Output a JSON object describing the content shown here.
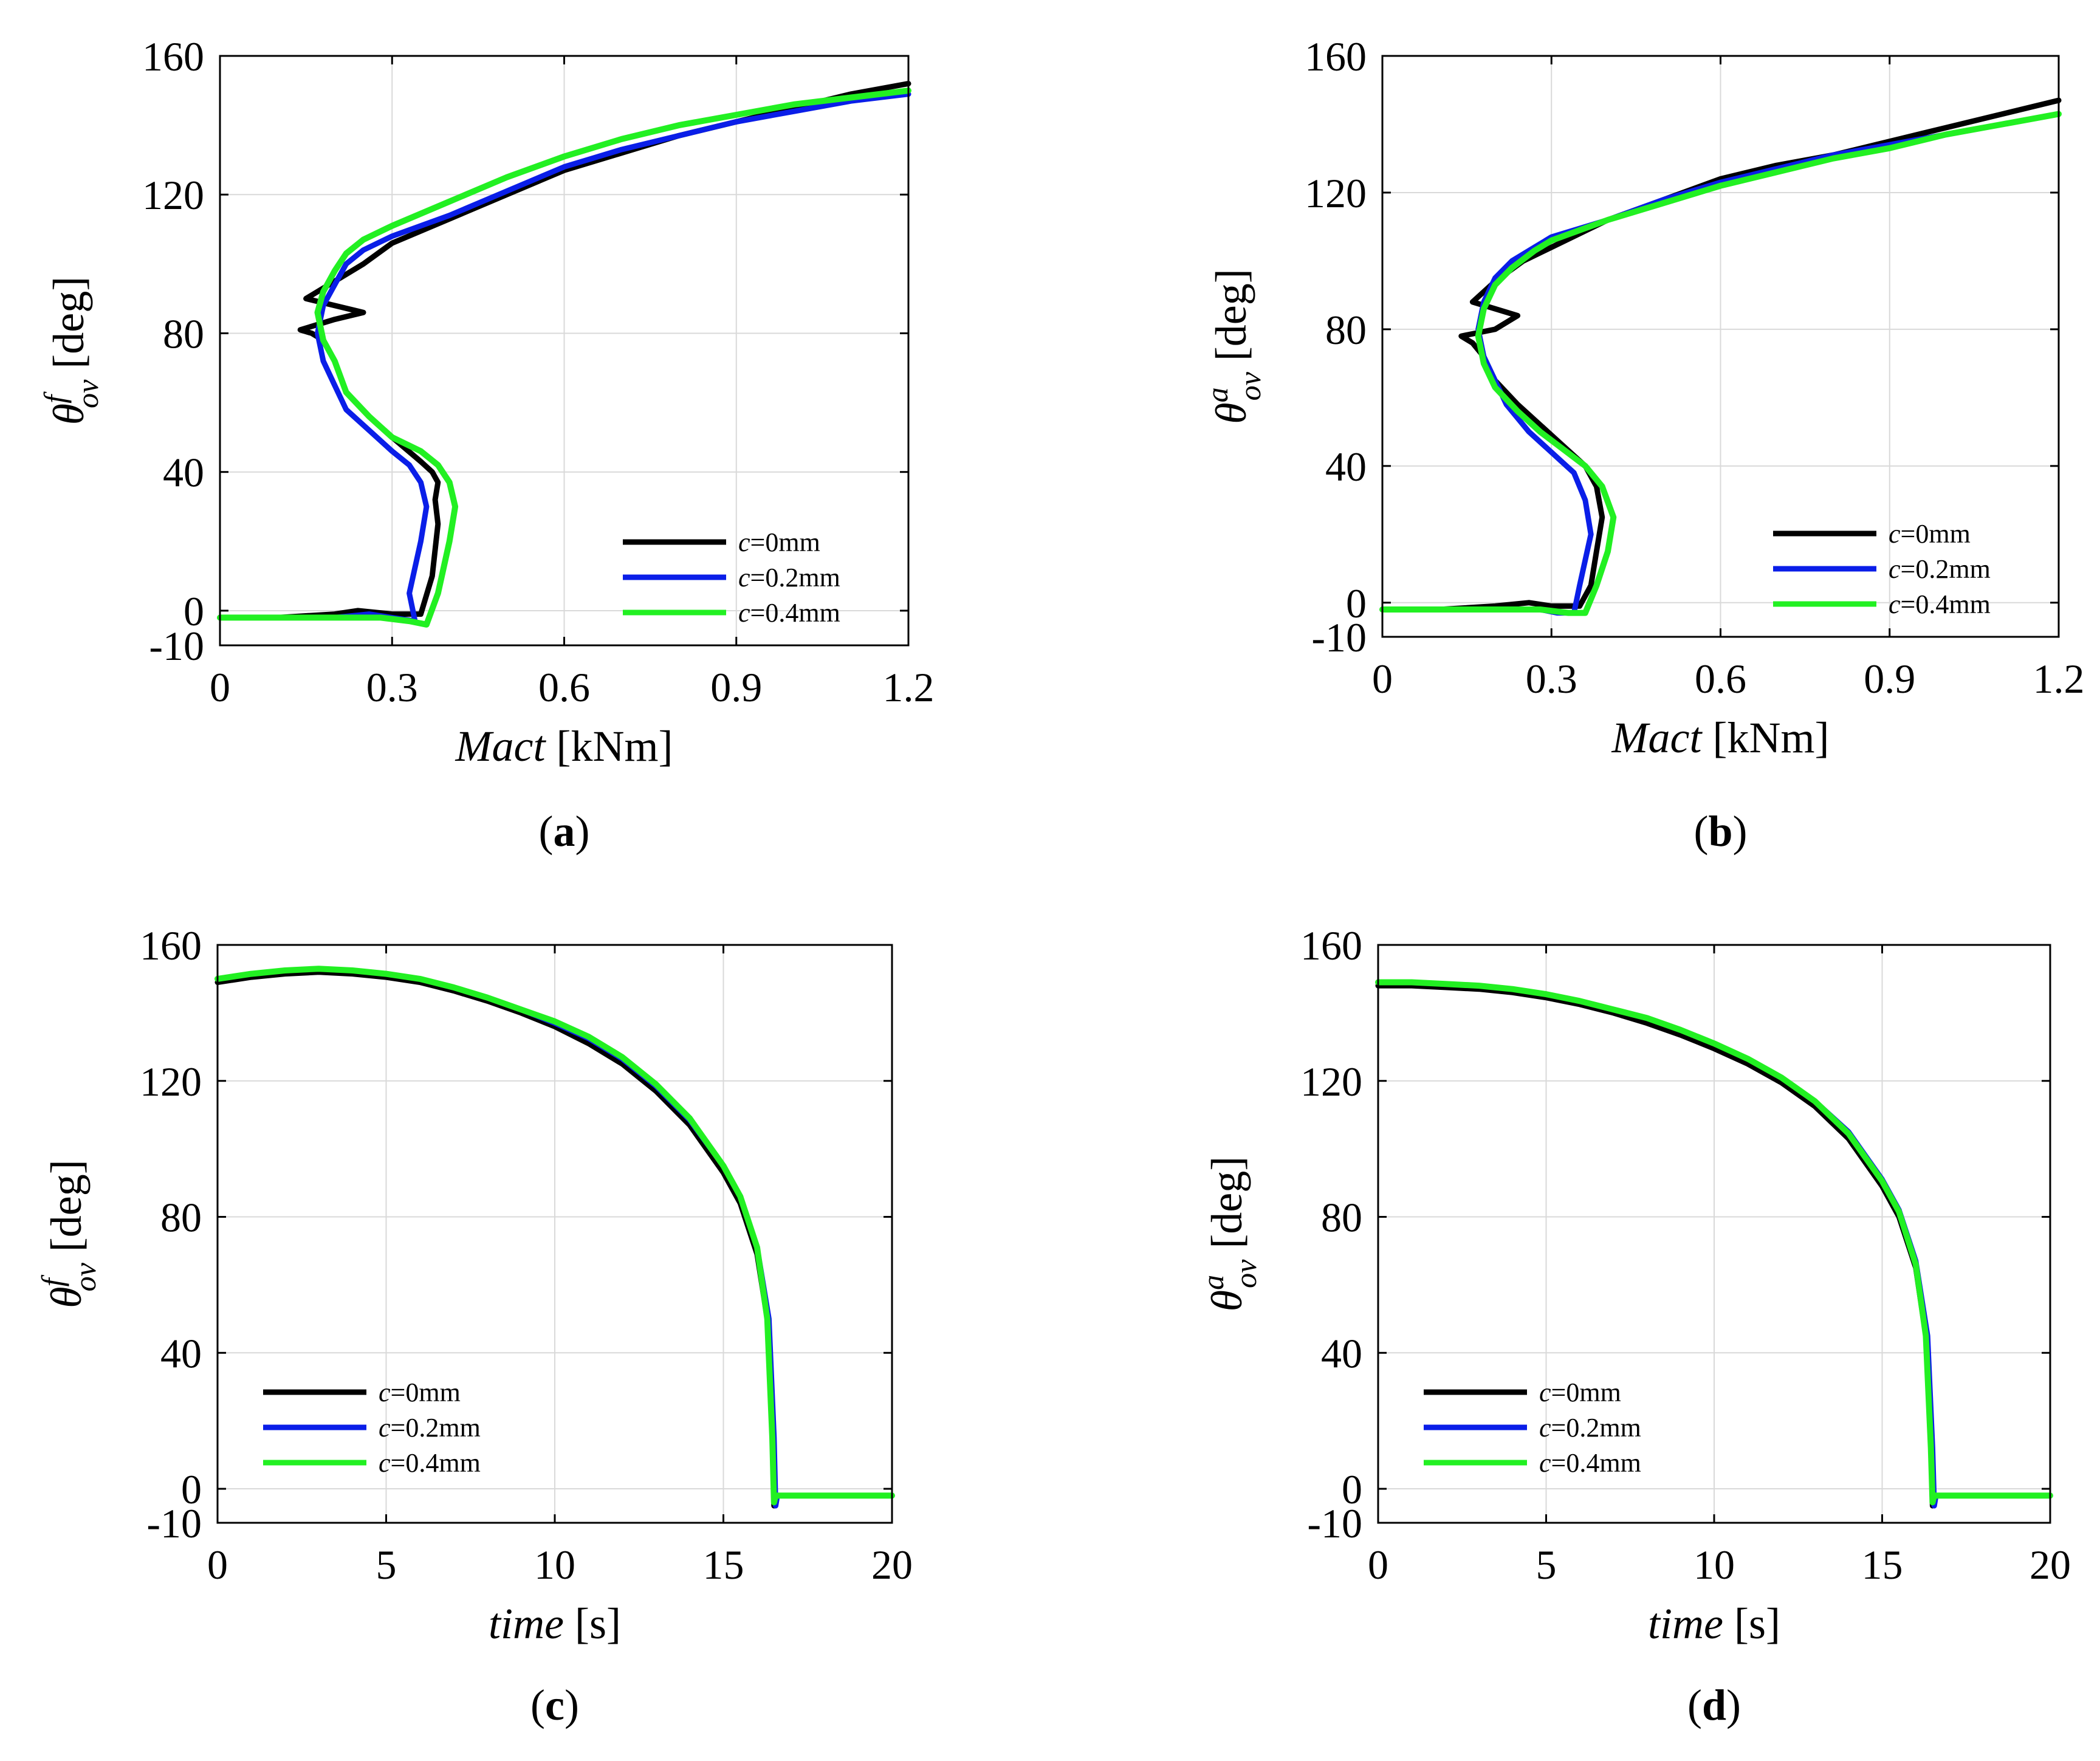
{
  "figure": {
    "series_colors": {
      "c0": "#000000",
      "c02": "#0a1ee8",
      "c04": "#22f022"
    }
  },
  "chart_data": [
    {
      "id": "a",
      "type": "line",
      "caption": "a",
      "xlabel": "Mact",
      "xlabel_unit": "[kNm]",
      "ylabel_base": "θ",
      "ylabel_sup": "f",
      "ylabel_sub": "ov",
      "ylabel_unit": "[deg]",
      "xlim": [
        0,
        1.2
      ],
      "ylim": [
        -10,
        160
      ],
      "xticks": [
        0,
        0.3,
        0.6,
        0.9,
        1.2
      ],
      "xtick_labels": [
        "0",
        "0.3",
        "0.6",
        "0.9",
        "1.2"
      ],
      "yticks": [
        -10,
        0,
        40,
        80,
        120,
        160
      ],
      "ytick_labels": [
        "-10",
        "0",
        "40",
        "80",
        "120",
        "160"
      ],
      "grid": true,
      "legend_position": "bottom-right",
      "series": [
        {
          "name": "c=0mm",
          "c": "c",
          "val": "=0mm",
          "color": "#000000",
          "x": [
            0,
            0.1,
            0.2,
            0.24,
            0.3,
            0.35,
            0.37,
            0.38,
            0.375,
            0.38,
            0.37,
            0.35,
            0.3,
            0.26,
            0.22,
            0.2,
            0.18,
            0.16,
            0.14,
            0.2,
            0.25,
            0.15,
            0.2,
            0.25,
            0.3,
            0.4,
            0.5,
            0.6,
            0.7,
            0.8,
            0.9,
            1.0,
            1.1,
            1.2
          ],
          "y": [
            -2,
            -2,
            -1,
            0,
            -1,
            -1,
            10,
            25,
            32,
            37,
            40,
            43,
            50,
            56,
            63,
            72,
            78,
            80,
            81,
            84,
            86,
            90,
            95,
            100,
            106,
            113,
            120,
            127,
            132,
            137,
            141,
            145,
            149,
            152
          ]
        },
        {
          "name": "c=0.2mm",
          "c": "c",
          "val": "=0.2mm",
          "color": "#0a1ee8",
          "x": [
            0,
            0.1,
            0.2,
            0.26,
            0.3,
            0.34,
            0.33,
            0.35,
            0.36,
            0.35,
            0.33,
            0.3,
            0.26,
            0.22,
            0.2,
            0.18,
            0.17,
            0.18,
            0.2,
            0.22,
            0.25,
            0.3,
            0.4,
            0.5,
            0.6,
            0.7,
            0.8,
            0.9,
            1.0,
            1.1,
            1.2
          ],
          "y": [
            -2,
            -2,
            -2,
            -1,
            -2,
            -3,
            5,
            20,
            30,
            37,
            42,
            46,
            52,
            58,
            65,
            72,
            80,
            88,
            94,
            100,
            104,
            108,
            114,
            121,
            128,
            133,
            137,
            141,
            144,
            147,
            149
          ]
        },
        {
          "name": "c=0.4mm",
          "c": "c",
          "val": "=0.4mm",
          "color": "#22f022",
          "x": [
            0,
            0.1,
            0.2,
            0.28,
            0.33,
            0.36,
            0.38,
            0.4,
            0.41,
            0.4,
            0.38,
            0.35,
            0.3,
            0.26,
            0.22,
            0.2,
            0.18,
            0.17,
            0.18,
            0.2,
            0.22,
            0.25,
            0.3,
            0.4,
            0.5,
            0.6,
            0.7,
            0.8,
            0.9,
            1.0,
            1.1,
            1.2
          ],
          "y": [
            -2,
            -2,
            -2,
            -2,
            -3,
            -4,
            5,
            20,
            30,
            37,
            42,
            46,
            50,
            56,
            63,
            72,
            78,
            86,
            92,
            98,
            103,
            107,
            111,
            118,
            125,
            131,
            136,
            140,
            143,
            146,
            148,
            150
          ]
        }
      ]
    },
    {
      "id": "b",
      "type": "line",
      "caption": "b",
      "xlabel": "Mact",
      "xlabel_unit": "[kNm]",
      "ylabel_base": "θ",
      "ylabel_sup": "a",
      "ylabel_sub": "ov",
      "ylabel_unit": "[deg]",
      "xlim": [
        0,
        1.2
      ],
      "ylim": [
        -10,
        160
      ],
      "xticks": [
        0,
        0.3,
        0.6,
        0.9,
        1.2
      ],
      "xtick_labels": [
        "0",
        "0.3",
        "0.6",
        "0.9",
        "1.2"
      ],
      "yticks": [
        -10,
        0,
        40,
        80,
        120,
        160
      ],
      "ytick_labels": [
        "-10",
        "0",
        "40",
        "80",
        "120",
        "160"
      ],
      "grid": true,
      "legend_position": "bottom-right",
      "series": [
        {
          "name": "c=0mm",
          "c": "c",
          "val": "=0mm",
          "color": "#000000",
          "x": [
            0,
            0.1,
            0.2,
            0.26,
            0.3,
            0.35,
            0.37,
            0.38,
            0.39,
            0.38,
            0.36,
            0.32,
            0.28,
            0.24,
            0.2,
            0.18,
            0.16,
            0.14,
            0.2,
            0.24,
            0.16,
            0.2,
            0.25,
            0.3,
            0.4,
            0.5,
            0.6,
            0.7,
            0.8,
            0.9,
            1.0,
            1.1,
            1.2
          ],
          "y": [
            -2,
            -2,
            -1,
            0,
            -1,
            -1,
            5,
            15,
            25,
            34,
            40,
            46,
            52,
            58,
            65,
            72,
            76,
            78,
            80,
            84,
            88,
            94,
            100,
            104,
            112,
            118,
            124,
            128,
            131,
            135,
            139,
            143,
            147
          ]
        },
        {
          "name": "c=0.2mm",
          "c": "c",
          "val": "=0.2mm",
          "color": "#0a1ee8",
          "x": [
            0,
            0.1,
            0.2,
            0.28,
            0.31,
            0.34,
            0.35,
            0.37,
            0.36,
            0.34,
            0.3,
            0.26,
            0.22,
            0.2,
            0.18,
            0.17,
            0.18,
            0.2,
            0.23,
            0.27,
            0.3,
            0.4,
            0.5,
            0.6,
            0.7,
            0.8,
            0.9,
            1.0,
            1.1,
            1.2
          ],
          "y": [
            -2,
            -2,
            -2,
            -2,
            -3,
            -3,
            5,
            20,
            30,
            38,
            44,
            50,
            58,
            65,
            72,
            80,
            88,
            95,
            100,
            104,
            107,
            112,
            118,
            123,
            127,
            131,
            134,
            137,
            140,
            143
          ]
        },
        {
          "name": "c=0.4mm",
          "c": "c",
          "val": "=0.4mm",
          "color": "#22f022",
          "x": [
            0,
            0.1,
            0.2,
            0.28,
            0.33,
            0.36,
            0.38,
            0.4,
            0.41,
            0.39,
            0.36,
            0.32,
            0.28,
            0.24,
            0.2,
            0.18,
            0.17,
            0.18,
            0.2,
            0.23,
            0.27,
            0.3,
            0.4,
            0.5,
            0.6,
            0.7,
            0.8,
            0.9,
            1.0,
            1.1,
            1.2
          ],
          "y": [
            -2,
            -2,
            -2,
            -2,
            -3,
            -3,
            5,
            15,
            25,
            34,
            40,
            45,
            50,
            56,
            63,
            70,
            78,
            86,
            93,
            98,
            103,
            106,
            112,
            117,
            122,
            126,
            130,
            133,
            137,
            140,
            143
          ]
        }
      ]
    },
    {
      "id": "c",
      "type": "line",
      "caption": "c",
      "xlabel": "time",
      "xlabel_unit": "[s]",
      "ylabel_base": "θ",
      "ylabel_sup": "f",
      "ylabel_sub": "ov",
      "ylabel_unit": "[deg]",
      "xlim": [
        0,
        20
      ],
      "ylim": [
        -10,
        160
      ],
      "xticks": [
        0,
        5,
        10,
        15,
        20
      ],
      "xtick_labels": [
        "0",
        "5",
        "10",
        "15",
        "20"
      ],
      "yticks": [
        -10,
        0,
        40,
        80,
        120,
        160
      ],
      "ytick_labels": [
        "-10",
        "0",
        "40",
        "80",
        "120",
        "160"
      ],
      "grid": true,
      "legend_position": "bottom-left",
      "series": [
        {
          "name": "c=0mm",
          "c": "c",
          "val": "=0mm",
          "color": "#000000",
          "x": [
            0,
            1,
            2,
            3,
            4,
            5,
            6,
            7,
            8,
            9,
            10,
            11,
            12,
            13,
            14,
            15,
            15.5,
            16,
            16.3,
            16.45,
            16.5,
            16.55,
            17,
            18,
            19,
            20
          ],
          "y": [
            149,
            150.5,
            151.5,
            152,
            151.5,
            150.5,
            149,
            146.5,
            143.5,
            140,
            136,
            131,
            125,
            117,
            107,
            93,
            84,
            69,
            50,
            15,
            -5,
            -2,
            -2,
            -2,
            -2,
            -2
          ]
        },
        {
          "name": "c=0.2mm",
          "c": "c",
          "val": "=0.2mm",
          "color": "#0a1ee8",
          "x": [
            0,
            1,
            2,
            3,
            4,
            5,
            6,
            7,
            8,
            9,
            10,
            11,
            12,
            13,
            14,
            15,
            15.5,
            16,
            16.35,
            16.5,
            16.55,
            16.6,
            17,
            18,
            19,
            20
          ],
          "y": [
            150,
            151.5,
            152.5,
            153,
            152.5,
            151.5,
            150,
            147.5,
            144.5,
            141,
            137,
            132.5,
            126.5,
            118.5,
            108.5,
            95,
            86,
            71,
            50,
            15,
            -5,
            -2,
            -2,
            -2,
            -2,
            -2
          ]
        },
        {
          "name": "c=0.4mm",
          "c": "c",
          "val": "=0.4mm",
          "color": "#22f022",
          "x": [
            0,
            1,
            2,
            3,
            4,
            5,
            6,
            7,
            8,
            9,
            10,
            11,
            12,
            13,
            14,
            15,
            15.5,
            16,
            16.3,
            16.45,
            16.5,
            16.55,
            17,
            18,
            19,
            20
          ],
          "y": [
            150,
            151.5,
            152.5,
            153,
            152.5,
            151.5,
            150,
            147.5,
            144.5,
            141,
            137.5,
            133,
            127,
            119,
            109,
            95,
            86,
            71,
            50,
            15,
            -4,
            -2,
            -2,
            -2,
            -2,
            -2
          ]
        }
      ]
    },
    {
      "id": "d",
      "type": "line",
      "caption": "d",
      "xlabel": "time",
      "xlabel_unit": "[s]",
      "ylabel_base": "θ",
      "ylabel_sup": "a",
      "ylabel_sub": "ov",
      "ylabel_unit": "[deg]",
      "xlim": [
        0,
        20
      ],
      "ylim": [
        -10,
        160
      ],
      "xticks": [
        0,
        5,
        10,
        15,
        20
      ],
      "xtick_labels": [
        "0",
        "5",
        "10",
        "15",
        "20"
      ],
      "yticks": [
        -10,
        0,
        40,
        80,
        120,
        160
      ],
      "ytick_labels": [
        "-10",
        "0",
        "40",
        "80",
        "120",
        "160"
      ],
      "grid": true,
      "legend_position": "bottom-left",
      "series": [
        {
          "name": "c=0mm",
          "c": "c",
          "val": "=0mm",
          "color": "#000000",
          "x": [
            0,
            1,
            2,
            3,
            4,
            5,
            6,
            7,
            8,
            9,
            10,
            11,
            12,
            13,
            14,
            15,
            15.5,
            16,
            16.3,
            16.45,
            16.5,
            16.55,
            17,
            18,
            19,
            20
          ],
          "y": [
            148,
            148,
            147.5,
            147,
            146,
            144.5,
            142.5,
            140,
            137,
            133.5,
            129.5,
            125,
            119.5,
            112.5,
            103,
            89,
            80,
            65,
            45,
            12,
            -5,
            -2,
            -2,
            -2,
            -2,
            -2
          ]
        },
        {
          "name": "c=0.2mm",
          "c": "c",
          "val": "=0.2mm",
          "color": "#0a1ee8",
          "x": [
            0,
            1,
            2,
            3,
            4,
            5,
            6,
            7,
            8,
            9,
            10,
            11,
            12,
            13,
            14,
            15,
            15.5,
            16,
            16.35,
            16.5,
            16.55,
            16.6,
            17,
            18,
            19,
            20
          ],
          "y": [
            149,
            149,
            148.5,
            148,
            147,
            145.5,
            143.5,
            141,
            138.5,
            135,
            131,
            126.5,
            121,
            114,
            105,
            91,
            82,
            67,
            45,
            12,
            -5,
            -2,
            -2,
            -2,
            -2,
            -2
          ]
        },
        {
          "name": "c=0.4mm",
          "c": "c",
          "val": "=0.4mm",
          "color": "#22f022",
          "x": [
            0,
            1,
            2,
            3,
            4,
            5,
            6,
            7,
            8,
            9,
            10,
            11,
            12,
            13,
            14,
            15,
            15.5,
            16,
            16.3,
            16.45,
            16.5,
            16.55,
            17,
            18,
            19,
            20
          ],
          "y": [
            149,
            149,
            148.5,
            148,
            147,
            145.5,
            143.5,
            141,
            138.5,
            135,
            131,
            126.5,
            121,
            114,
            104.5,
            90.5,
            81.5,
            66,
            45,
            12,
            -4,
            -2,
            -2,
            -2,
            -2,
            -2
          ]
        }
      ]
    }
  ]
}
